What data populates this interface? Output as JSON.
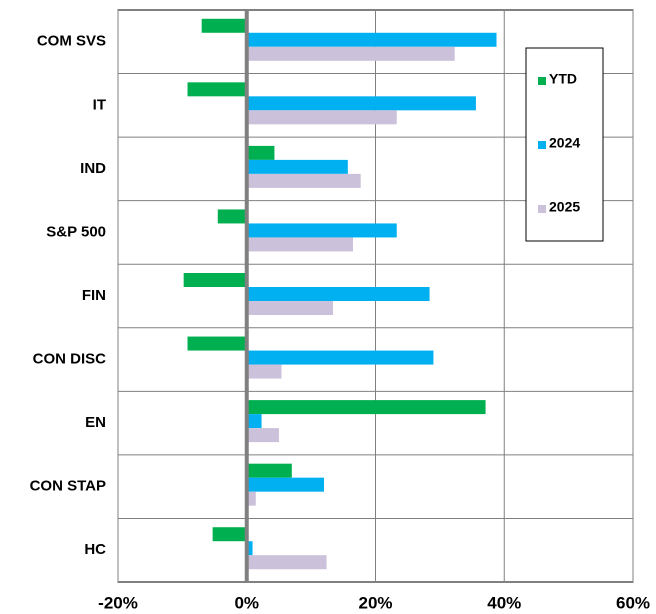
{
  "chart_data": {
    "type": "hbar",
    "categories": [
      "COM SVS",
      "IT",
      "IND",
      "S&P 500",
      "FIN",
      "CON DISC",
      "EN",
      "CON STAP",
      "HC"
    ],
    "series": [
      {
        "name": "YTD",
        "color": "#00b050",
        "values": [
          -7.0,
          -9.2,
          4.3,
          -4.5,
          -9.8,
          -9.2,
          37.1,
          7.0,
          -5.3
        ]
      },
      {
        "name": "2024",
        "color": "#00b0f0",
        "values": [
          38.8,
          35.6,
          15.7,
          23.3,
          28.4,
          29.0,
          2.3,
          12.0,
          0.9
        ]
      },
      {
        "name": "2025",
        "color": "#ccc1da",
        "values": [
          32.3,
          23.3,
          17.7,
          16.5,
          13.4,
          5.4,
          5.0,
          1.4,
          12.4
        ]
      }
    ],
    "xlim": [
      -20,
      60
    ],
    "xticks": [
      {
        "value": -20,
        "label": "-20%"
      },
      {
        "value": 0,
        "label": "0%"
      },
      {
        "value": 20,
        "label": "20%"
      },
      {
        "value": 40,
        "label": "40%"
      },
      {
        "value": 60,
        "label": "60%"
      }
    ],
    "grid": true,
    "legend": "upper right"
  }
}
